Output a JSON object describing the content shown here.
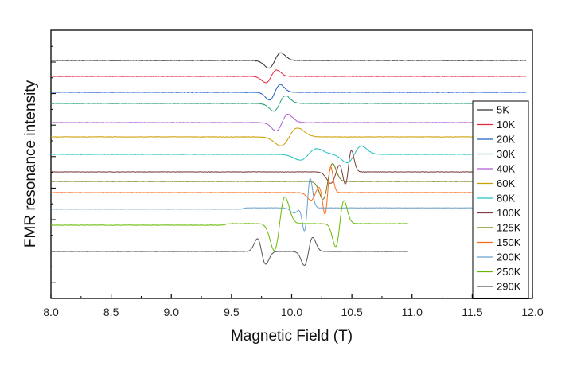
{
  "chart_data": {
    "type": "line",
    "xlabel": "Magnetic Field (T)",
    "ylabel": "FMR resonance intensity",
    "xlim": [
      8.0,
      12.0
    ],
    "x_ticks": [
      "8.0",
      "8.5",
      "9.0",
      "9.5",
      "10.0",
      "10.5",
      "11.0",
      "11.5",
      "12.0"
    ],
    "y_tick_labels": "none",
    "legend_position": "right",
    "series": [
      {
        "name": "5K",
        "color": "#333333",
        "offset": 12,
        "x_end": 11.95,
        "noise": 0.35,
        "features": [
          {
            "type": "deriv",
            "center": 9.86,
            "amp": 6.0,
            "width": 0.05
          }
        ]
      },
      {
        "name": "10K",
        "color": "#e8283a",
        "offset": 11,
        "x_end": 11.95,
        "noise": 0.35,
        "features": [
          {
            "type": "deriv",
            "center": 9.83,
            "amp": 5.0,
            "width": 0.045
          }
        ]
      },
      {
        "name": "20K",
        "color": "#2060c8",
        "offset": 10,
        "x_end": 11.95,
        "noise": 0.35,
        "features": [
          {
            "type": "deriv",
            "center": 9.86,
            "amp": 6.0,
            "width": 0.045
          }
        ]
      },
      {
        "name": "30K",
        "color": "#2aa37a",
        "offset": 9.3,
        "x_end": 11.5,
        "noise": 0.35,
        "features": [
          {
            "type": "deriv",
            "center": 9.9,
            "amp": 6.0,
            "width": 0.05
          }
        ]
      },
      {
        "name": "40K",
        "color": "#b25cd6",
        "offset": 8.1,
        "x_end": 11.5,
        "noise": 0.35,
        "features": [
          {
            "type": "deriv",
            "center": 9.92,
            "amp": 6.5,
            "width": 0.05
          }
        ]
      },
      {
        "name": "60K",
        "color": "#c9a000",
        "offset": 7.2,
        "x_end": 11.5,
        "noise": 0.35,
        "features": [
          {
            "type": "deriv",
            "center": 9.98,
            "amp": 7.0,
            "width": 0.07
          }
        ]
      },
      {
        "name": "80K",
        "color": "#22c4c4",
        "offset": 6.1,
        "x_end": 11.5,
        "noise": 0.35,
        "features": [
          {
            "type": "deriv",
            "center": 10.14,
            "amp": 4.5,
            "width": 0.07
          },
          {
            "type": "deriv",
            "center": 10.52,
            "amp": 6.5,
            "width": 0.06
          }
        ]
      },
      {
        "name": "100K",
        "color": "#7a3c3c",
        "offset": 5.0,
        "x_end": 11.5,
        "noise": 0.3,
        "features": [
          {
            "type": "deriv",
            "center": 10.37,
            "amp": 9.0,
            "width": 0.045
          },
          {
            "type": "deriv",
            "center": 10.47,
            "amp": 16.0,
            "width": 0.028
          }
        ]
      },
      {
        "name": "125K",
        "color": "#6b7a10",
        "offset": 4.4,
        "x_end": 11.5,
        "noise": 0.3,
        "features": [
          {
            "type": "deriv",
            "center": 10.3,
            "amp": 14.0,
            "width": 0.04
          }
        ]
      },
      {
        "name": "150K",
        "color": "#ff6a1a",
        "offset": 3.7,
        "x_end": 11.5,
        "noise": 0.3,
        "features": [
          {
            "type": "deriv",
            "center": 10.2,
            "amp": 6.0,
            "width": 0.04
          },
          {
            "type": "deriv",
            "center": 10.3,
            "amp": 20.0,
            "width": 0.025
          }
        ]
      },
      {
        "name": "200K",
        "color": "#6aa0cc",
        "offset": 2.7,
        "x_end": 11.5,
        "noise": 0.3,
        "features": [
          {
            "type": "step",
            "center": 9.6,
            "amp": 0.5,
            "width": 0.02
          },
          {
            "type": "deriv",
            "center": 10.06,
            "amp": 4.0,
            "width": 0.04
          },
          {
            "type": "deriv",
            "center": 10.13,
            "amp": 22.0,
            "width": 0.025
          }
        ]
      },
      {
        "name": "250K",
        "color": "#66bb00",
        "offset": 1.7,
        "x_end": 10.97,
        "noise": 0.3,
        "features": [
          {
            "type": "step",
            "center": 9.45,
            "amp": 0.6,
            "width": 0.02
          },
          {
            "type": "deriv",
            "center": 9.9,
            "amp": 21.0,
            "width": 0.045
          },
          {
            "type": "deriv",
            "center": 10.4,
            "amp": 18.0,
            "width": 0.035
          }
        ]
      },
      {
        "name": "290K",
        "color": "#555555",
        "offset": 0,
        "x_end": 10.97,
        "noise": 0.25,
        "features": [
          {
            "type": "deriv",
            "center": 9.75,
            "amp": -10.0,
            "width": 0.035
          },
          {
            "type": "deriv",
            "center": 10.14,
            "amp": 11.0,
            "width": 0.035
          }
        ]
      }
    ]
  }
}
